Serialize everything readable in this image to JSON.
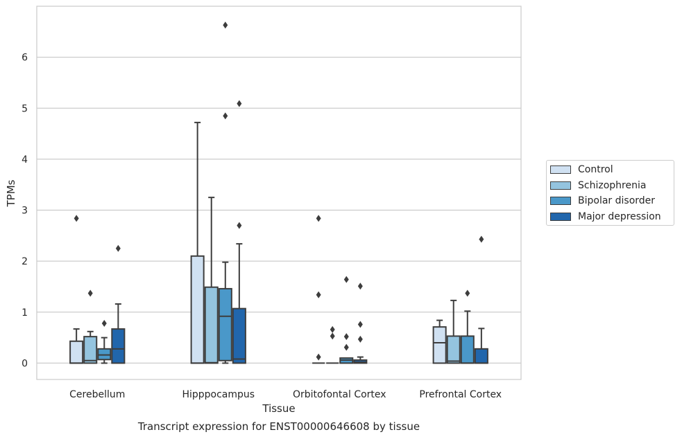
{
  "caption": "Transcript expression for ENST00000646608 by tissue",
  "chart_data": {
    "type": "box",
    "title": "",
    "xlabel": "Tissue",
    "ylabel": "TPMs",
    "ylim": [
      -0.32,
      7.0
    ],
    "yticks": [
      0,
      1,
      2,
      3,
      4,
      5,
      6
    ],
    "grid": "horizontal",
    "legend_position": "right",
    "categories": [
      "Cerebellum",
      "Hipppocampus",
      "Orbitofontal Cortex",
      "Prefrontal Cortex"
    ],
    "series": [
      {
        "name": "Control",
        "color": "#d0e1f2",
        "boxes": [
          {
            "min": 0,
            "q1": 0,
            "median": 0,
            "q3": 0.43,
            "max": 0.67,
            "outliers": [
              2.84
            ]
          },
          {
            "min": 0,
            "q1": 0,
            "median": 0,
            "q3": 2.1,
            "max": 4.72,
            "outliers": []
          },
          {
            "min": 0,
            "q1": 0,
            "median": 0,
            "q3": 0,
            "max": 0,
            "outliers": [
              2.84,
              1.34,
              0.12
            ]
          },
          {
            "min": 0,
            "q1": 0,
            "median": 0.4,
            "q3": 0.71,
            "max": 0.84,
            "outliers": []
          }
        ]
      },
      {
        "name": "Schizophrenia",
        "color": "#94c4df",
        "boxes": [
          {
            "min": 0,
            "q1": 0,
            "median": 0.05,
            "q3": 0.52,
            "max": 0.62,
            "outliers": [
              1.37
            ]
          },
          {
            "min": 0,
            "q1": 0,
            "median": 0.01,
            "q3": 1.49,
            "max": 3.25,
            "outliers": []
          },
          {
            "min": 0,
            "q1": 0,
            "median": 0,
            "q3": 0,
            "max": 0,
            "outliers": [
              0.66,
              0.53
            ]
          },
          {
            "min": 0,
            "q1": 0,
            "median": 0.04,
            "q3": 0.53,
            "max": 1.23,
            "outliers": []
          }
        ]
      },
      {
        "name": "Bipolar disorder",
        "color": "#4a98c9",
        "boxes": [
          {
            "min": 0,
            "q1": 0.07,
            "median": 0.16,
            "q3": 0.28,
            "max": 0.5,
            "outliers": [
              0.78
            ]
          },
          {
            "min": 0,
            "q1": 0.05,
            "median": 0.92,
            "q3": 1.46,
            "max": 1.98,
            "outliers": [
              6.63,
              4.85
            ]
          },
          {
            "min": 0,
            "q1": 0,
            "median": 0.06,
            "q3": 0.1,
            "max": 0.1,
            "outliers": [
              1.64,
              0.52,
              0.31
            ]
          },
          {
            "min": 0,
            "q1": 0,
            "median": 0,
            "q3": 0.53,
            "max": 1.02,
            "outliers": [
              1.37
            ]
          }
        ]
      },
      {
        "name": "Major depression",
        "color": "#2166ac",
        "boxes": [
          {
            "min": 0,
            "q1": 0,
            "median": 0.28,
            "q3": 0.67,
            "max": 1.16,
            "outliers": [
              2.25
            ]
          },
          {
            "min": 0,
            "q1": 0,
            "median": 0.08,
            "q3": 1.07,
            "max": 2.34,
            "outliers": [
              5.09,
              2.7
            ]
          },
          {
            "min": 0,
            "q1": 0,
            "median": 0.02,
            "q3": 0.06,
            "max": 0.12,
            "outliers": [
              1.51,
              0.76,
              0.47
            ]
          },
          {
            "min": 0,
            "q1": 0,
            "median": 0,
            "q3": 0.28,
            "max": 0.68,
            "outliers": [
              2.43
            ]
          }
        ]
      }
    ]
  }
}
